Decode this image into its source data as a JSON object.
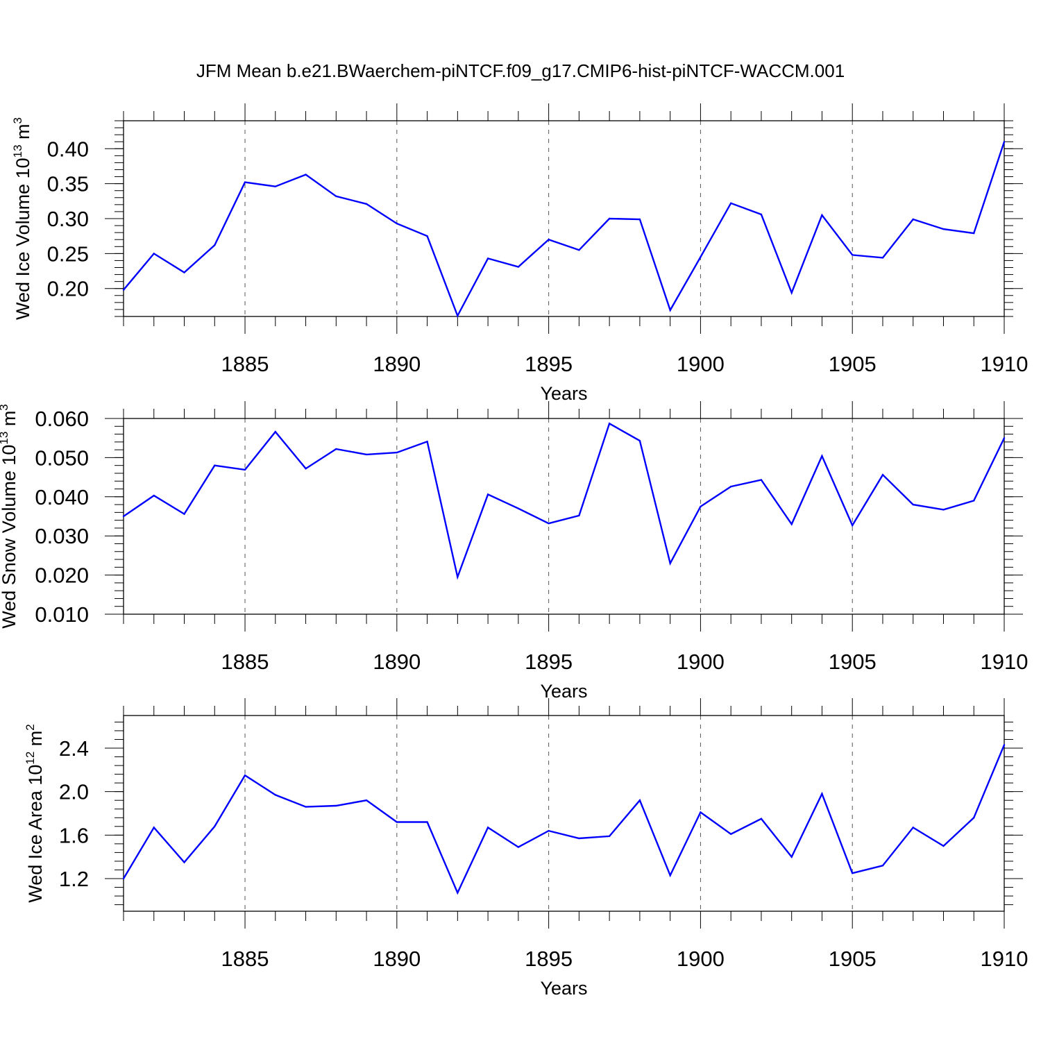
{
  "title": "JFM Mean b.e21.BWaerchem-piNTCF.f09_g17.CMIP6-hist-piNTCF-WACCM.001",
  "colors": {
    "line": "#0000ff",
    "axis": "#000000",
    "grid": "#555555"
  },
  "chart_data": [
    {
      "type": "line",
      "ylabel": {
        "main": "Wed Ice Volume 10",
        "sup": "13",
        "unit": " m",
        "unit_sup": "3"
      },
      "xlabel": "Years",
      "xlim": [
        1881,
        1910
      ],
      "ylim": [
        0.16,
        0.44
      ],
      "xticks": [
        "1885",
        "1890",
        "1895",
        "1900",
        "1905",
        "1910"
      ],
      "yticks": [
        "0.20",
        "0.25",
        "0.30",
        "0.35",
        "0.40"
      ],
      "x": [
        1881,
        1882,
        1883,
        1884,
        1885,
        1886,
        1887,
        1888,
        1889,
        1890,
        1891,
        1892,
        1893,
        1894,
        1895,
        1896,
        1897,
        1898,
        1899,
        1900,
        1901,
        1902,
        1903,
        1904,
        1905,
        1906,
        1907,
        1908,
        1909,
        1910
      ],
      "values": [
        0.198,
        0.25,
        0.223,
        0.262,
        0.352,
        0.346,
        0.363,
        0.332,
        0.321,
        0.293,
        0.275,
        0.161,
        0.243,
        0.231,
        0.27,
        0.255,
        0.3,
        0.299,
        0.169,
        0.245,
        0.322,
        0.306,
        0.194,
        0.305,
        0.248,
        0.244,
        0.299,
        0.285,
        0.279,
        0.41
      ]
    },
    {
      "type": "line",
      "ylabel": {
        "main": "Wed Snow Volume 10",
        "sup": "13",
        "unit": " m",
        "unit_sup": "3"
      },
      "xlabel": "Years",
      "xlim": [
        1881,
        1910
      ],
      "ylim": [
        0.01,
        0.06
      ],
      "xticks": [
        "1885",
        "1890",
        "1895",
        "1900",
        "1905",
        "1910"
      ],
      "yticks": [
        "0.010",
        "0.020",
        "0.030",
        "0.040",
        "0.050",
        "0.060"
      ],
      "x": [
        1881,
        1882,
        1883,
        1884,
        1885,
        1886,
        1887,
        1888,
        1889,
        1890,
        1891,
        1892,
        1893,
        1894,
        1895,
        1896,
        1897,
        1898,
        1899,
        1900,
        1901,
        1902,
        1903,
        1904,
        1905,
        1906,
        1907,
        1908,
        1909,
        1910
      ],
      "values": [
        0.035,
        0.0403,
        0.0356,
        0.048,
        0.0469,
        0.0566,
        0.0472,
        0.0522,
        0.0508,
        0.0513,
        0.0541,
        0.0195,
        0.0406,
        0.037,
        0.0332,
        0.0352,
        0.0587,
        0.0543,
        0.023,
        0.0375,
        0.0426,
        0.0443,
        0.033,
        0.0504,
        0.0327,
        0.0456,
        0.038,
        0.0367,
        0.039,
        0.055
      ]
    },
    {
      "type": "line",
      "ylabel": {
        "main": "Wed Ice Area 10",
        "sup": "12",
        "unit": " m",
        "unit_sup": "2"
      },
      "xlabel": "Years",
      "xlim": [
        1881,
        1910
      ],
      "ylim": [
        0.9,
        2.7
      ],
      "xticks": [
        "1885",
        "1890",
        "1895",
        "1900",
        "1905",
        "1910"
      ],
      "yticks": [
        "1.2",
        "1.6",
        "2.0",
        "2.4"
      ],
      "x": [
        1881,
        1882,
        1883,
        1884,
        1885,
        1886,
        1887,
        1888,
        1889,
        1890,
        1891,
        1892,
        1893,
        1894,
        1895,
        1896,
        1897,
        1898,
        1899,
        1900,
        1901,
        1902,
        1903,
        1904,
        1905,
        1906,
        1907,
        1908,
        1909,
        1910
      ],
      "values": [
        1.2,
        1.67,
        1.35,
        1.68,
        2.15,
        1.97,
        1.86,
        1.87,
        1.92,
        1.72,
        1.72,
        1.07,
        1.67,
        1.49,
        1.64,
        1.57,
        1.59,
        1.92,
        1.23,
        1.81,
        1.61,
        1.75,
        1.4,
        1.98,
        1.25,
        1.32,
        1.67,
        1.5,
        1.76,
        2.43
      ]
    }
  ]
}
